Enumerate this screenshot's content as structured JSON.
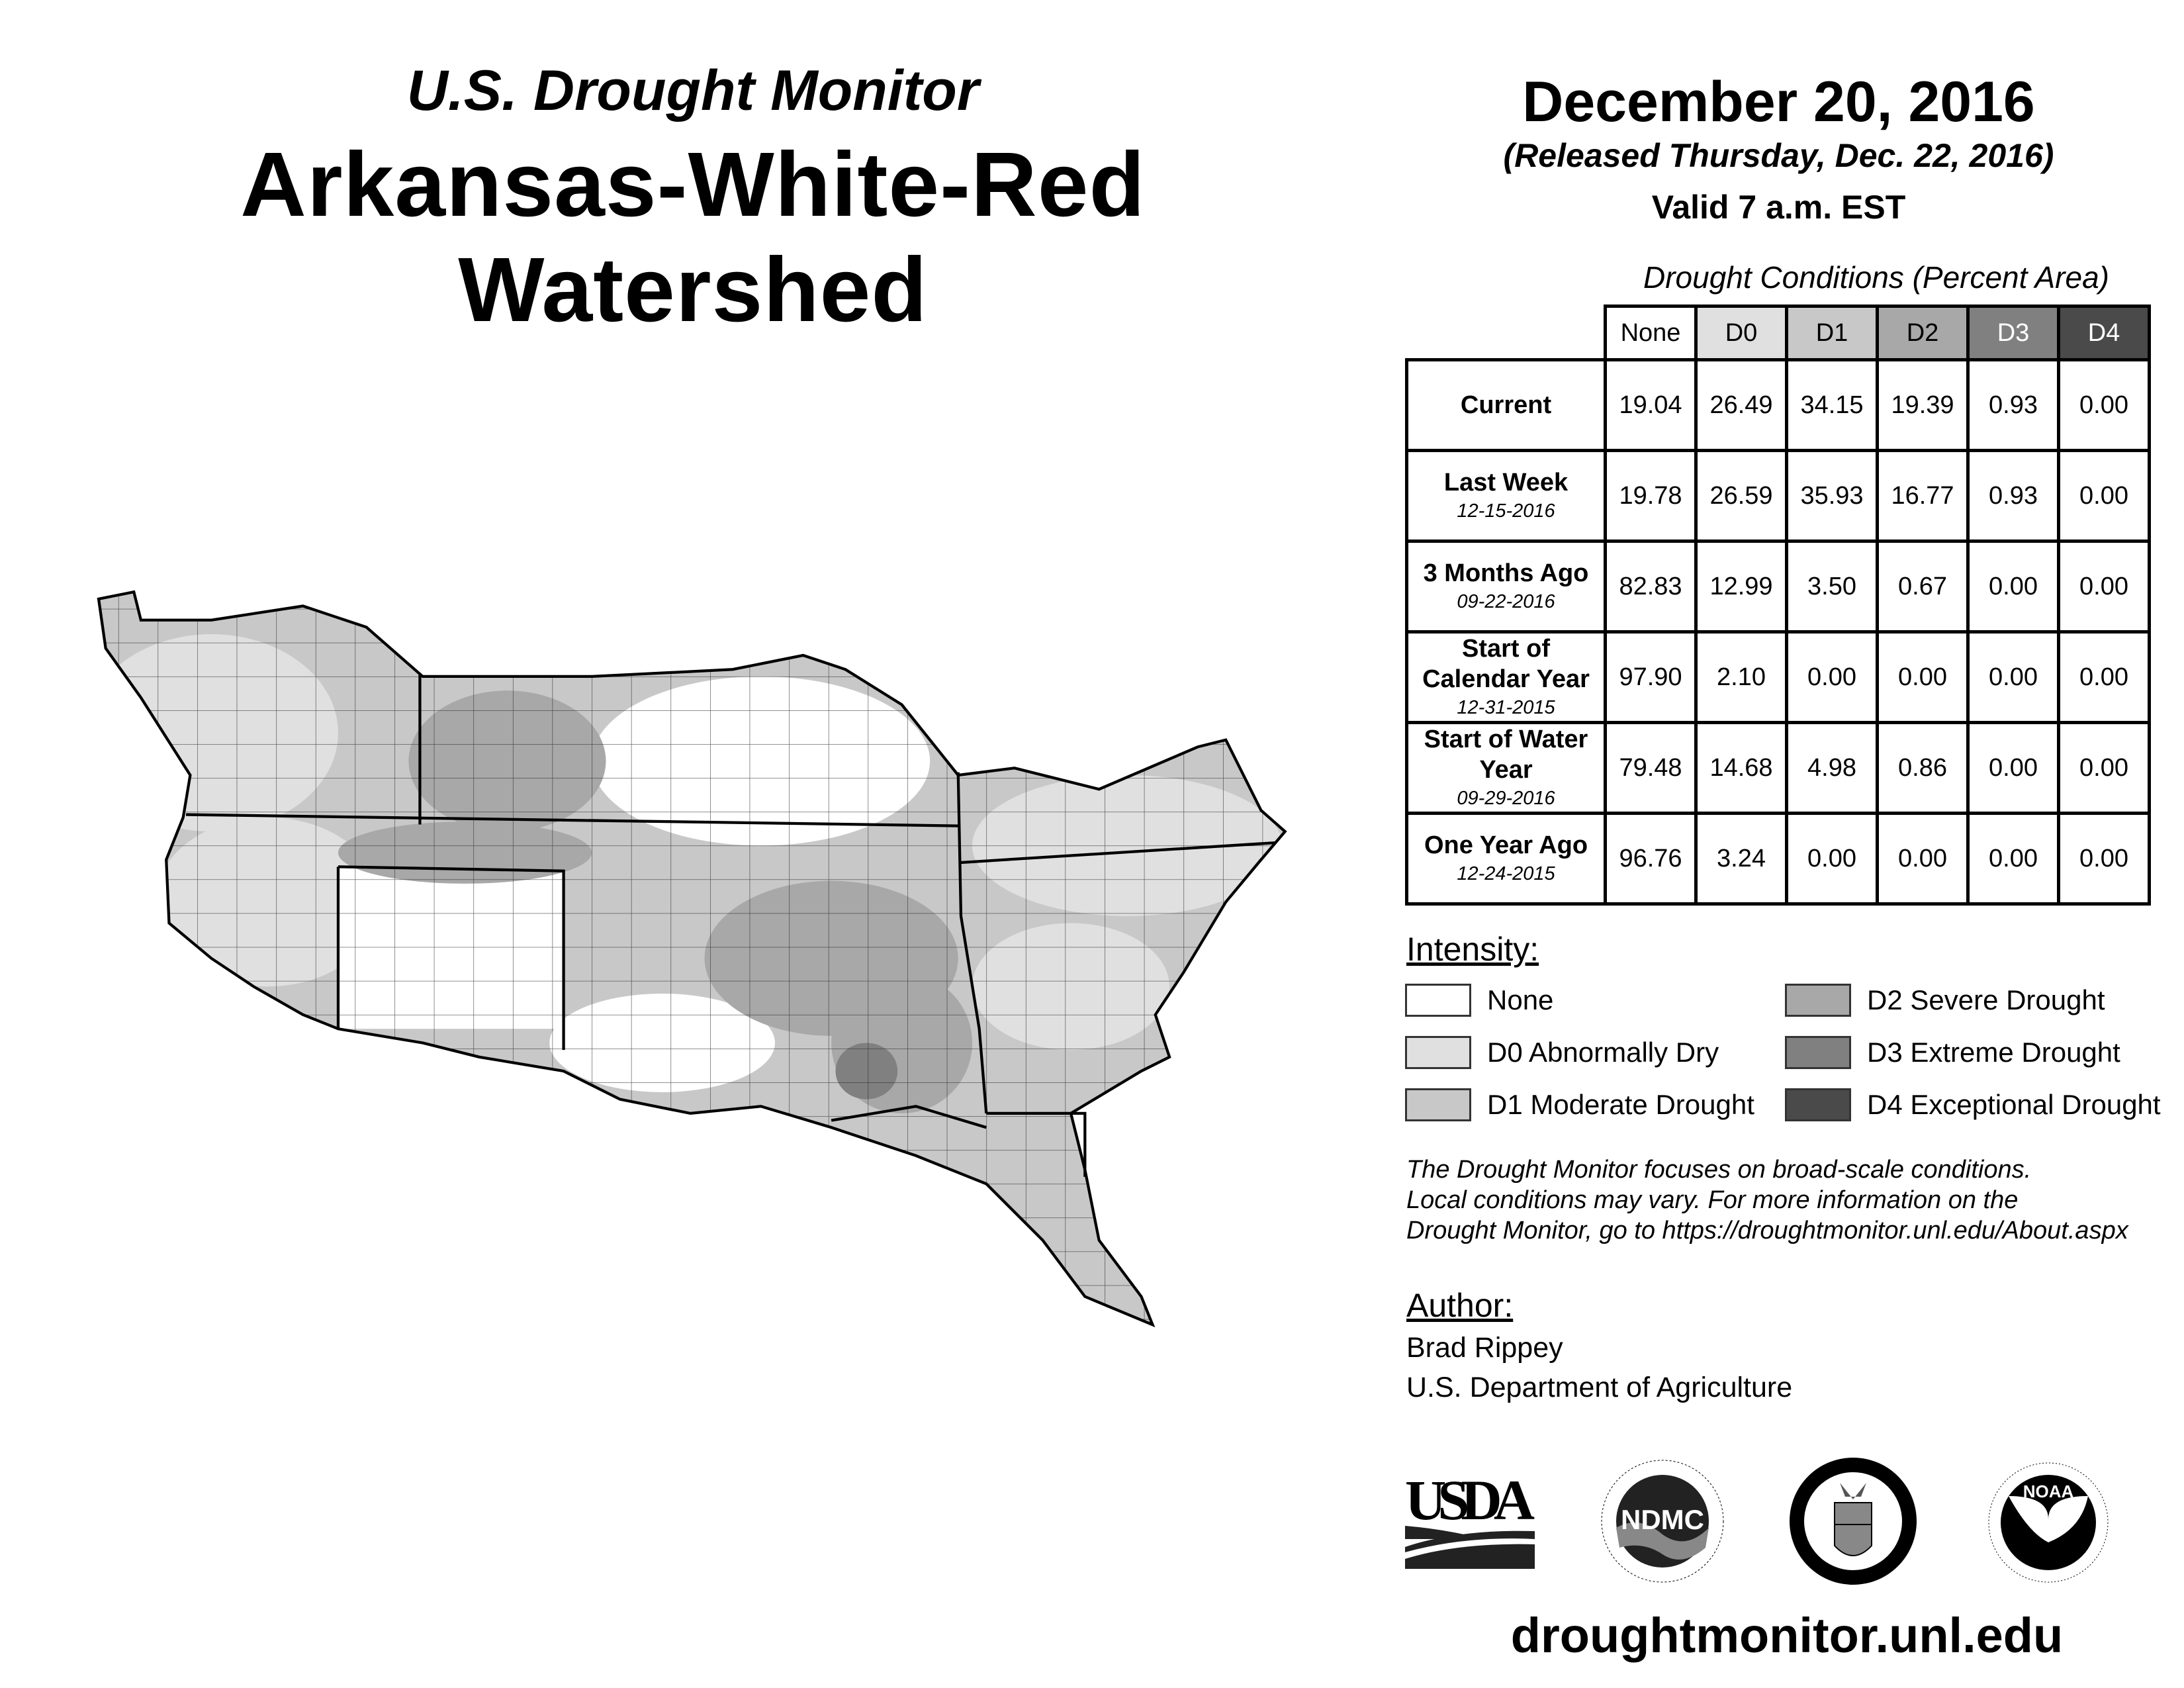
{
  "header": {
    "subtitle": "U.S. Drought Monitor",
    "title": "Arkansas-White-Red Watershed",
    "date": "December 20, 2016",
    "released": "(Released Thursday, Dec. 22, 2016)",
    "valid": "Valid 7 a.m. EST"
  },
  "table": {
    "title": "Drought Conditions (Percent Area)",
    "columns": [
      "None",
      "D0",
      "D1",
      "D2",
      "D3",
      "D4"
    ],
    "column_colors": [
      "#ffffff",
      "#e0e0e0",
      "#c8c8c8",
      "#a8a8a8",
      "#808080",
      "#4a4a4a"
    ],
    "rows": [
      {
        "label": "Current",
        "date": "",
        "values": [
          "19.04",
          "26.49",
          "34.15",
          "19.39",
          "0.93",
          "0.00"
        ]
      },
      {
        "label": "Last Week",
        "date": "12-15-2016",
        "values": [
          "19.78",
          "26.59",
          "35.93",
          "16.77",
          "0.93",
          "0.00"
        ]
      },
      {
        "label": "3 Months Ago",
        "date": "09-22-2016",
        "values": [
          "82.83",
          "12.99",
          "3.50",
          "0.67",
          "0.00",
          "0.00"
        ]
      },
      {
        "label": "Start of Calendar Year",
        "date": "12-31-2015",
        "values": [
          "97.90",
          "2.10",
          "0.00",
          "0.00",
          "0.00",
          "0.00"
        ]
      },
      {
        "label": "Start of Water Year",
        "date": "09-29-2016",
        "values": [
          "79.48",
          "14.68",
          "4.98",
          "0.86",
          "0.00",
          "0.00"
        ]
      },
      {
        "label": "One Year Ago",
        "date": "12-24-2015",
        "values": [
          "96.76",
          "3.24",
          "0.00",
          "0.00",
          "0.00",
          "0.00"
        ]
      }
    ]
  },
  "legend": {
    "title": "Intensity:",
    "items": [
      {
        "label": "None",
        "color": "#ffffff"
      },
      {
        "label": "D0 Abnormally Dry",
        "color": "#e0e0e0"
      },
      {
        "label": "D1 Moderate Drought",
        "color": "#c8c8c8"
      },
      {
        "label": "D2 Severe Drought",
        "color": "#a8a8a8"
      },
      {
        "label": "D3 Extreme Drought",
        "color": "#808080"
      },
      {
        "label": "D4 Exceptional Drought",
        "color": "#4a4a4a"
      }
    ]
  },
  "disclaimer": [
    "The Drought Monitor focuses on broad-scale conditions.",
    "Local conditions may vary. For more information on the",
    "Drought Monitor, go to https://droughtmonitor.unl.edu/About.aspx"
  ],
  "author": {
    "label": "Author:",
    "name": "Brad Rippey",
    "org": "U.S. Department of Agriculture"
  },
  "logos": {
    "usda": "USDA",
    "ndmc": "NDMC",
    "ndmc_ring_top": "NATIONAL DROUGHT MITIGATION CENTER",
    "ndmc_ring_bottom": "UNIVERSITY OF NEBRASKA",
    "doc_ring_top": "DEPARTMENT OF COMMERCE",
    "doc_ring_bottom": "UNITED STATES OF AMERICA",
    "noaa": "NOAA",
    "noaa_ring_top": "NATIONAL OCEANIC AND ATMOSPHERIC ADMINISTRATION",
    "noaa_ring_bottom": "U.S. DEPARTMENT OF COMMERCE"
  },
  "footer": {
    "url": "droughtmonitor.unl.edu"
  }
}
